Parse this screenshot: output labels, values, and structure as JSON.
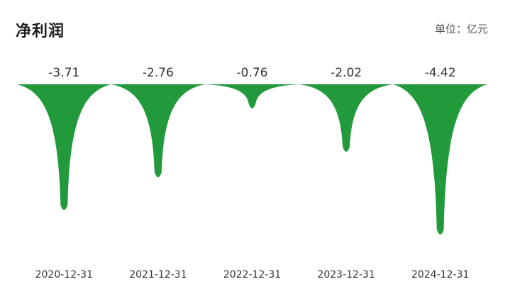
{
  "header": {
    "title": "净利润",
    "unit": "单位：亿元"
  },
  "chart_data": {
    "type": "area",
    "categories": [
      "2020-12-31",
      "2021-12-31",
      "2022-12-31",
      "2023-12-31",
      "2024-12-31"
    ],
    "series": [
      {
        "values": [
          -3.71,
          -2.76,
          -0.76,
          -2.02,
          -4.42
        ]
      }
    ],
    "value_labels": [
      "-3.71",
      "-2.76",
      "-0.76",
      "-2.02",
      "-4.42"
    ],
    "title": "净利润",
    "unit": "单位：亿元",
    "ylim": [
      -4.42,
      0
    ],
    "grid": false,
    "colors": {
      "fill": "#229a3b"
    }
  }
}
